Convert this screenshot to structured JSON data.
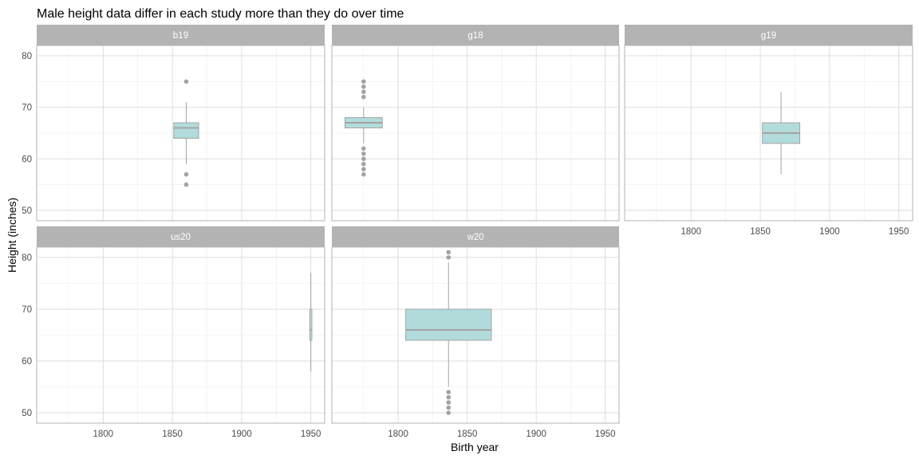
{
  "chart_data": {
    "type": "box",
    "title": "Male height data differ in each study more than they do over time",
    "xlabel": "Birth year",
    "ylabel": "Height (inches)",
    "xlim": [
      1752,
      1960
    ],
    "ylim": [
      48,
      82
    ],
    "x_ticks": [
      1800,
      1850,
      1900,
      1950
    ],
    "y_ticks": [
      50,
      60,
      70,
      80
    ],
    "grid": true,
    "facet_layout": "3 columns x 2 rows",
    "colors": {
      "strip": "#b3b3b3",
      "box_fill": "#b2dcdc",
      "box_line": "#a3a3a3",
      "grid": "#dedede",
      "panel_border": "#b3b3b3"
    },
    "facets": [
      {
        "name": "b19",
        "x_center": 1860,
        "box_width": 18,
        "min": 59,
        "q1": 64,
        "median": 66,
        "q3": 67,
        "max": 71,
        "outliers": [
          75,
          57,
          55
        ]
      },
      {
        "name": "g18",
        "x_center": 1775,
        "box_width": 27,
        "min": 63,
        "q1": 66,
        "median": 67,
        "q3": 68,
        "max": 70,
        "outliers": [
          75,
          74,
          73,
          72,
          62,
          61,
          60,
          59,
          58,
          57
        ]
      },
      {
        "name": "g19",
        "x_center": 1865,
        "box_width": 27,
        "min": 57,
        "q1": 63,
        "median": 65,
        "q3": 67,
        "max": 73,
        "outliers": []
      },
      {
        "name": "us20",
        "x_center": 1950,
        "box_width": 1.5,
        "min": 58,
        "q1": 64,
        "median": 66,
        "q3": 70,
        "max": 77,
        "outliers": []
      },
      {
        "name": "w20",
        "x_center": 1836.5,
        "box_width": 62,
        "min": 55,
        "q1": 64,
        "median": 66,
        "q3": 70,
        "max": 79,
        "outliers": [
          81,
          80,
          54,
          53,
          52,
          51,
          50
        ]
      }
    ]
  }
}
